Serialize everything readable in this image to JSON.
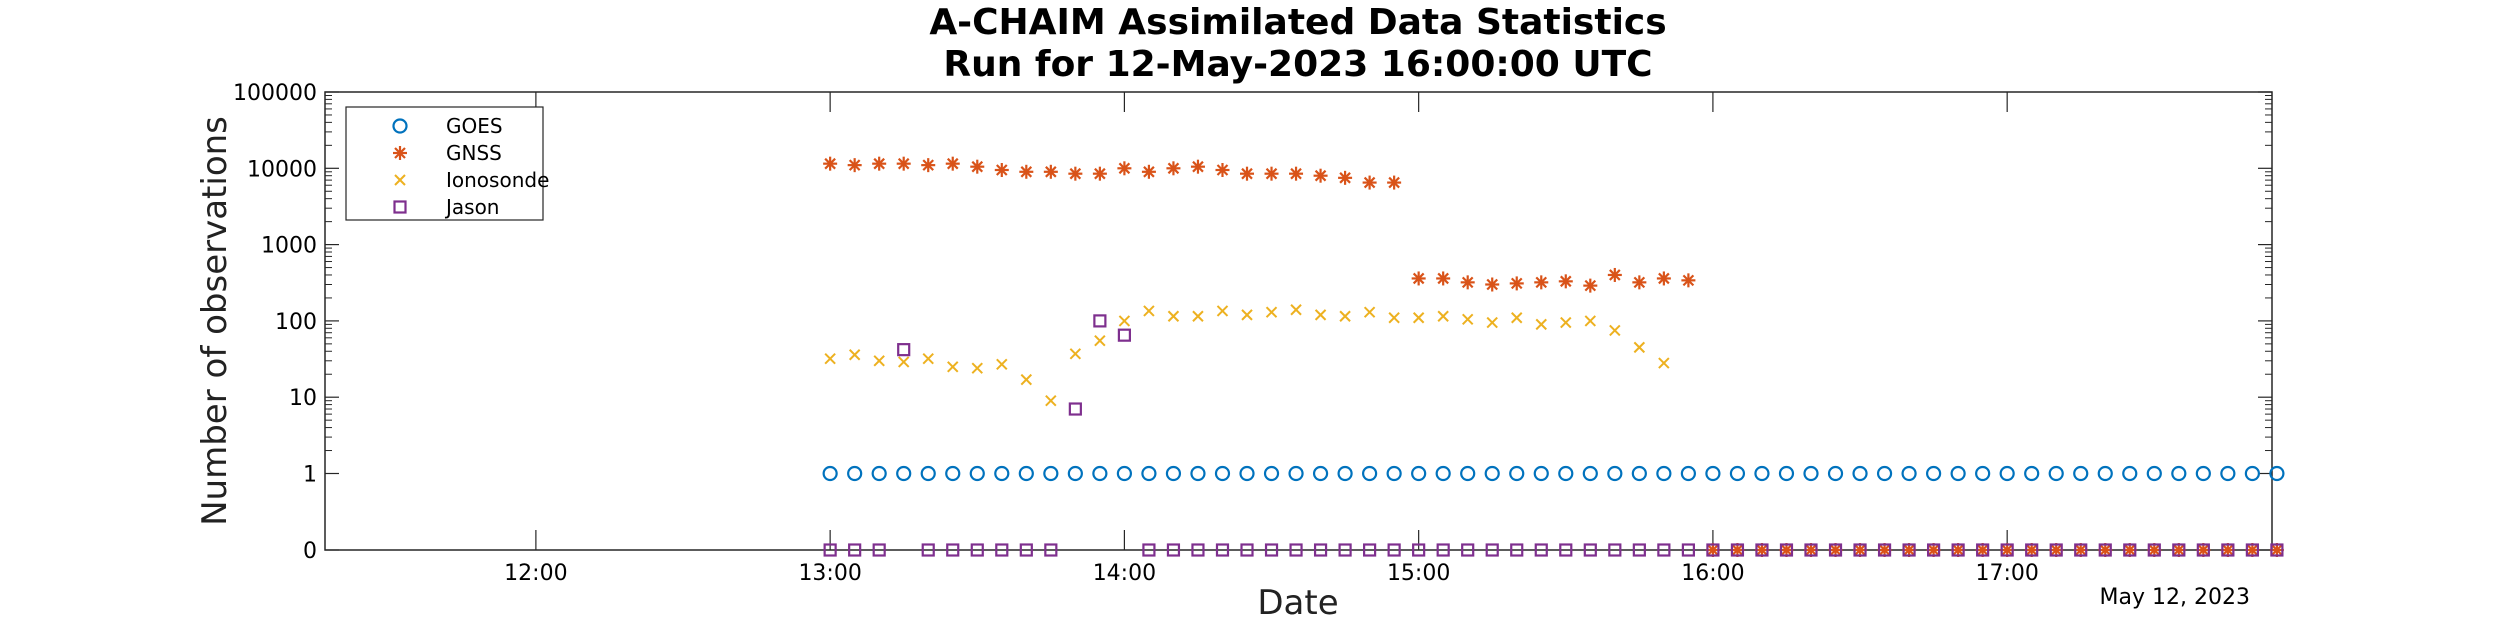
{
  "chart_data": {
    "type": "scatter",
    "title": "A-CHAIM Assimilated Data Statistics",
    "subtitle": "Run for 12-May-2023 16:00:00 UTC",
    "xlabel": "Date",
    "ylabel": "Number of observations",
    "date_annotation": "May 12, 2023",
    "y_scale": "log",
    "y_zero_row": true,
    "xlim": [
      "11:17",
      "17:54"
    ],
    "ylim": [
      0,
      100000
    ],
    "x_ticks": [
      "12:00",
      "13:00",
      "14:00",
      "15:00",
      "16:00",
      "17:00"
    ],
    "y_ticks": [
      "0",
      "1",
      "10",
      "100",
      "1000",
      "10000",
      "100000"
    ],
    "legend_position": "top-left",
    "grid": false,
    "series": [
      {
        "name": "GOES",
        "marker": "circle",
        "color": "#0072BD",
        "points": [
          [
            "13:00",
            1
          ],
          [
            "13:05",
            1
          ],
          [
            "13:10",
            1
          ],
          [
            "13:15",
            1
          ],
          [
            "13:20",
            1
          ],
          [
            "13:25",
            1
          ],
          [
            "13:30",
            1
          ],
          [
            "13:35",
            1
          ],
          [
            "13:40",
            1
          ],
          [
            "13:45",
            1
          ],
          [
            "13:50",
            1
          ],
          [
            "13:55",
            1
          ],
          [
            "14:00",
            1
          ],
          [
            "14:05",
            1
          ],
          [
            "14:10",
            1
          ],
          [
            "14:15",
            1
          ],
          [
            "14:20",
            1
          ],
          [
            "14:25",
            1
          ],
          [
            "14:30",
            1
          ],
          [
            "14:35",
            1
          ],
          [
            "14:40",
            1
          ],
          [
            "14:45",
            1
          ],
          [
            "14:50",
            1
          ],
          [
            "14:55",
            1
          ],
          [
            "15:00",
            1
          ],
          [
            "15:05",
            1
          ],
          [
            "15:10",
            1
          ],
          [
            "15:15",
            1
          ],
          [
            "15:20",
            1
          ],
          [
            "15:25",
            1
          ],
          [
            "15:30",
            1
          ],
          [
            "15:35",
            1
          ],
          [
            "15:40",
            1
          ],
          [
            "15:45",
            1
          ],
          [
            "15:50",
            1
          ],
          [
            "15:55",
            1
          ],
          [
            "16:00",
            1
          ],
          [
            "16:05",
            1
          ],
          [
            "16:10",
            1
          ],
          [
            "16:15",
            1
          ],
          [
            "16:20",
            1
          ],
          [
            "16:25",
            1
          ],
          [
            "16:30",
            1
          ],
          [
            "16:35",
            1
          ],
          [
            "16:40",
            1
          ],
          [
            "16:45",
            1
          ],
          [
            "16:50",
            1
          ],
          [
            "16:55",
            1
          ],
          [
            "17:00",
            1
          ],
          [
            "17:05",
            1
          ],
          [
            "17:10",
            1
          ],
          [
            "17:15",
            1
          ],
          [
            "17:20",
            1
          ],
          [
            "17:25",
            1
          ],
          [
            "17:30",
            1
          ],
          [
            "17:35",
            1
          ],
          [
            "17:40",
            1
          ],
          [
            "17:45",
            1
          ],
          [
            "17:50",
            1
          ],
          [
            "17:55",
            1
          ]
        ]
      },
      {
        "name": "GNSS",
        "marker": "asterisk",
        "color": "#D95319",
        "points": [
          [
            "13:00",
            11500
          ],
          [
            "13:05",
            11000
          ],
          [
            "13:10",
            11500
          ],
          [
            "13:15",
            11500
          ],
          [
            "13:20",
            11000
          ],
          [
            "13:25",
            11500
          ],
          [
            "13:30",
            10500
          ],
          [
            "13:35",
            9500
          ],
          [
            "13:40",
            9000
          ],
          [
            "13:45",
            9000
          ],
          [
            "13:50",
            8500
          ],
          [
            "13:55",
            8500
          ],
          [
            "14:00",
            10000
          ],
          [
            "14:05",
            9000
          ],
          [
            "14:10",
            10000
          ],
          [
            "14:15",
            10500
          ],
          [
            "14:20",
            9500
          ],
          [
            "14:25",
            8500
          ],
          [
            "14:30",
            8500
          ],
          [
            "14:35",
            8500
          ],
          [
            "14:40",
            8000
          ],
          [
            "14:45",
            7500
          ],
          [
            "14:50",
            6500
          ],
          [
            "14:55",
            6500
          ],
          [
            "15:00",
            360
          ],
          [
            "15:05",
            360
          ],
          [
            "15:10",
            320
          ],
          [
            "15:15",
            300
          ],
          [
            "15:20",
            310
          ],
          [
            "15:25",
            320
          ],
          [
            "15:30",
            330
          ],
          [
            "15:35",
            290
          ],
          [
            "15:40",
            400
          ],
          [
            "15:45",
            320
          ],
          [
            "15:50",
            360
          ],
          [
            "15:55",
            340
          ],
          [
            "16:00",
            0
          ],
          [
            "16:05",
            0
          ],
          [
            "16:10",
            0
          ],
          [
            "16:15",
            0
          ],
          [
            "16:20",
            0
          ],
          [
            "16:25",
            0
          ],
          [
            "16:30",
            0
          ],
          [
            "16:35",
            0
          ],
          [
            "16:40",
            0
          ],
          [
            "16:45",
            0
          ],
          [
            "16:50",
            0
          ],
          [
            "16:55",
            0
          ],
          [
            "17:00",
            0
          ],
          [
            "17:05",
            0
          ],
          [
            "17:10",
            0
          ],
          [
            "17:15",
            0
          ],
          [
            "17:20",
            0
          ],
          [
            "17:25",
            0
          ],
          [
            "17:30",
            0
          ],
          [
            "17:35",
            0
          ],
          [
            "17:40",
            0
          ],
          [
            "17:45",
            0
          ],
          [
            "17:50",
            0
          ],
          [
            "17:55",
            0
          ]
        ]
      },
      {
        "name": "Ionosonde",
        "marker": "x",
        "color": "#EDB120",
        "points": [
          [
            "13:00",
            32
          ],
          [
            "13:05",
            36
          ],
          [
            "13:10",
            30
          ],
          [
            "13:15",
            29
          ],
          [
            "13:20",
            32
          ],
          [
            "13:25",
            25
          ],
          [
            "13:30",
            24
          ],
          [
            "13:35",
            27
          ],
          [
            "13:40",
            17
          ],
          [
            "13:45",
            9
          ],
          [
            "13:50",
            37
          ],
          [
            "13:55",
            55
          ],
          [
            "14:00",
            100
          ],
          [
            "14:05",
            135
          ],
          [
            "14:10",
            115
          ],
          [
            "14:15",
            115
          ],
          [
            "14:20",
            135
          ],
          [
            "14:25",
            120
          ],
          [
            "14:30",
            130
          ],
          [
            "14:35",
            140
          ],
          [
            "14:40",
            120
          ],
          [
            "14:45",
            115
          ],
          [
            "14:50",
            130
          ],
          [
            "14:55",
            110
          ],
          [
            "15:00",
            110
          ],
          [
            "15:05",
            115
          ],
          [
            "15:10",
            105
          ],
          [
            "15:15",
            95
          ],
          [
            "15:20",
            110
          ],
          [
            "15:25",
            90
          ],
          [
            "15:30",
            95
          ],
          [
            "15:35",
            100
          ],
          [
            "15:40",
            75
          ],
          [
            "15:45",
            45
          ],
          [
            "15:50",
            28
          ]
        ]
      },
      {
        "name": "Jason",
        "marker": "square",
        "color": "#7E2F8E",
        "points": [
          [
            "13:00",
            0
          ],
          [
            "13:05",
            0
          ],
          [
            "13:10",
            0
          ],
          [
            "13:15",
            42
          ],
          [
            "13:20",
            0
          ],
          [
            "13:25",
            0
          ],
          [
            "13:30",
            0
          ],
          [
            "13:35",
            0
          ],
          [
            "13:40",
            0
          ],
          [
            "13:45",
            0
          ],
          [
            "13:50",
            7
          ],
          [
            "13:55",
            100
          ],
          [
            "14:00",
            65
          ],
          [
            "14:05",
            0
          ],
          [
            "14:10",
            0
          ],
          [
            "14:15",
            0
          ],
          [
            "14:20",
            0
          ],
          [
            "14:25",
            0
          ],
          [
            "14:30",
            0
          ],
          [
            "14:35",
            0
          ],
          [
            "14:40",
            0
          ],
          [
            "14:45",
            0
          ],
          [
            "14:50",
            0
          ],
          [
            "14:55",
            0
          ],
          [
            "15:00",
            0
          ],
          [
            "15:05",
            0
          ],
          [
            "15:10",
            0
          ],
          [
            "15:15",
            0
          ],
          [
            "15:20",
            0
          ],
          [
            "15:25",
            0
          ],
          [
            "15:30",
            0
          ],
          [
            "15:35",
            0
          ],
          [
            "15:40",
            0
          ],
          [
            "15:45",
            0
          ],
          [
            "15:50",
            0
          ],
          [
            "15:55",
            0
          ],
          [
            "16:00",
            0
          ],
          [
            "16:05",
            0
          ],
          [
            "16:10",
            0
          ],
          [
            "16:15",
            0
          ],
          [
            "16:20",
            0
          ],
          [
            "16:25",
            0
          ],
          [
            "16:30",
            0
          ],
          [
            "16:35",
            0
          ],
          [
            "16:40",
            0
          ],
          [
            "16:45",
            0
          ],
          [
            "16:50",
            0
          ],
          [
            "16:55",
            0
          ],
          [
            "17:00",
            0
          ],
          [
            "17:05",
            0
          ],
          [
            "17:10",
            0
          ],
          [
            "17:15",
            0
          ],
          [
            "17:20",
            0
          ],
          [
            "17:25",
            0
          ],
          [
            "17:30",
            0
          ],
          [
            "17:35",
            0
          ],
          [
            "17:40",
            0
          ],
          [
            "17:45",
            0
          ],
          [
            "17:50",
            0
          ],
          [
            "17:55",
            0
          ]
        ]
      }
    ]
  }
}
